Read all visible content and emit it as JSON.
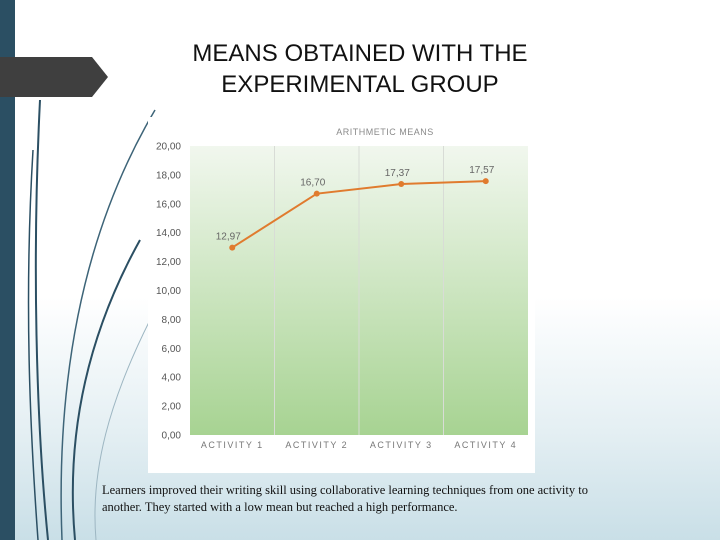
{
  "slide": {
    "title": "MEANS OBTAINED WITH THE\nEXPERIMENTAL GROUP",
    "caption": "Learners improved their writing skill using collaborative learning techniques from one activity to another. They started with a low mean but reached a high performance."
  },
  "colors": {
    "accent_bar": "#2b4f63",
    "line": "#e07b2e",
    "plot_gradient_top": "#f1f7ee",
    "plot_gradient_bottom": "#a7d392"
  },
  "chart_data": {
    "type": "line",
    "title": "ARITHMETIC MEANS",
    "categories": [
      "ACTIVITY 1",
      "ACTIVITY 2",
      "ACTIVITY 3",
      "ACTIVITY 4"
    ],
    "series": [
      {
        "values": [
          12.97,
          16.7,
          17.37,
          17.57
        ]
      }
    ],
    "data_labels": [
      "12,97",
      "16,70",
      "17,37",
      "17,57"
    ],
    "y_ticks": [
      "0,00",
      "2,00",
      "4,00",
      "6,00",
      "8,00",
      "10,00",
      "12,00",
      "14,00",
      "16,00",
      "18,00",
      "20,00"
    ],
    "ylim": [
      0,
      20
    ],
    "xlabel": "",
    "ylabel": "",
    "grid": "vertical",
    "legend": "none"
  }
}
